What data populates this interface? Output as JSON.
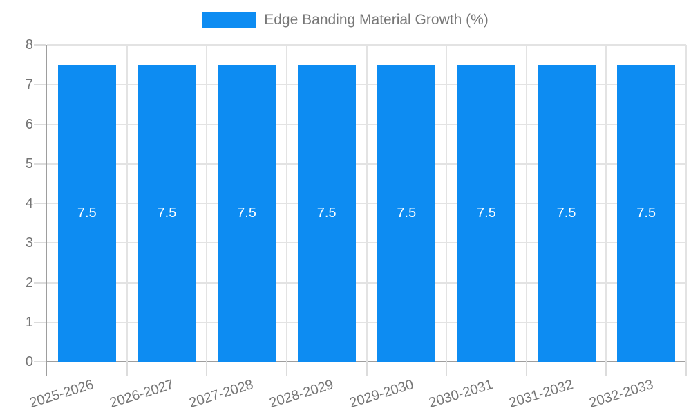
{
  "legend": {
    "label": "Edge Banding Material Growth (%)"
  },
  "colors": {
    "bar": "#0d8cf2",
    "axis_line": "#9e9e9e",
    "gridline": "#e3e3e3",
    "tick": "#dcdcdc",
    "axis_text": "#757575",
    "legend_text": "#777777",
    "value_text": "#ffffff",
    "background": "#ffffff"
  },
  "chart_data": {
    "type": "bar",
    "title": "Edge Banding Material Growth (%)",
    "categories": [
      "2025-2026",
      "2026-2027",
      "2027-2028",
      "2028-2029",
      "2029-2030",
      "2030-2031",
      "2031-2032",
      "2032-2033"
    ],
    "series": [
      {
        "name": "Edge Banding Material Growth (%)",
        "values": [
          7.5,
          7.5,
          7.5,
          7.5,
          7.5,
          7.5,
          7.5,
          7.5
        ]
      }
    ],
    "value_labels": [
      "7.5",
      "7.5",
      "7.5",
      "7.5",
      "7.5",
      "7.5",
      "7.5",
      "7.5"
    ],
    "xlabel": "",
    "ylabel": "",
    "ylim": [
      0,
      8
    ],
    "yticks": [
      0,
      1,
      2,
      3,
      4,
      5,
      6,
      7,
      8
    ],
    "grid": true,
    "legend_position": "top",
    "value_labels_inside_bars": true,
    "x_label_rotation_deg": -17
  }
}
